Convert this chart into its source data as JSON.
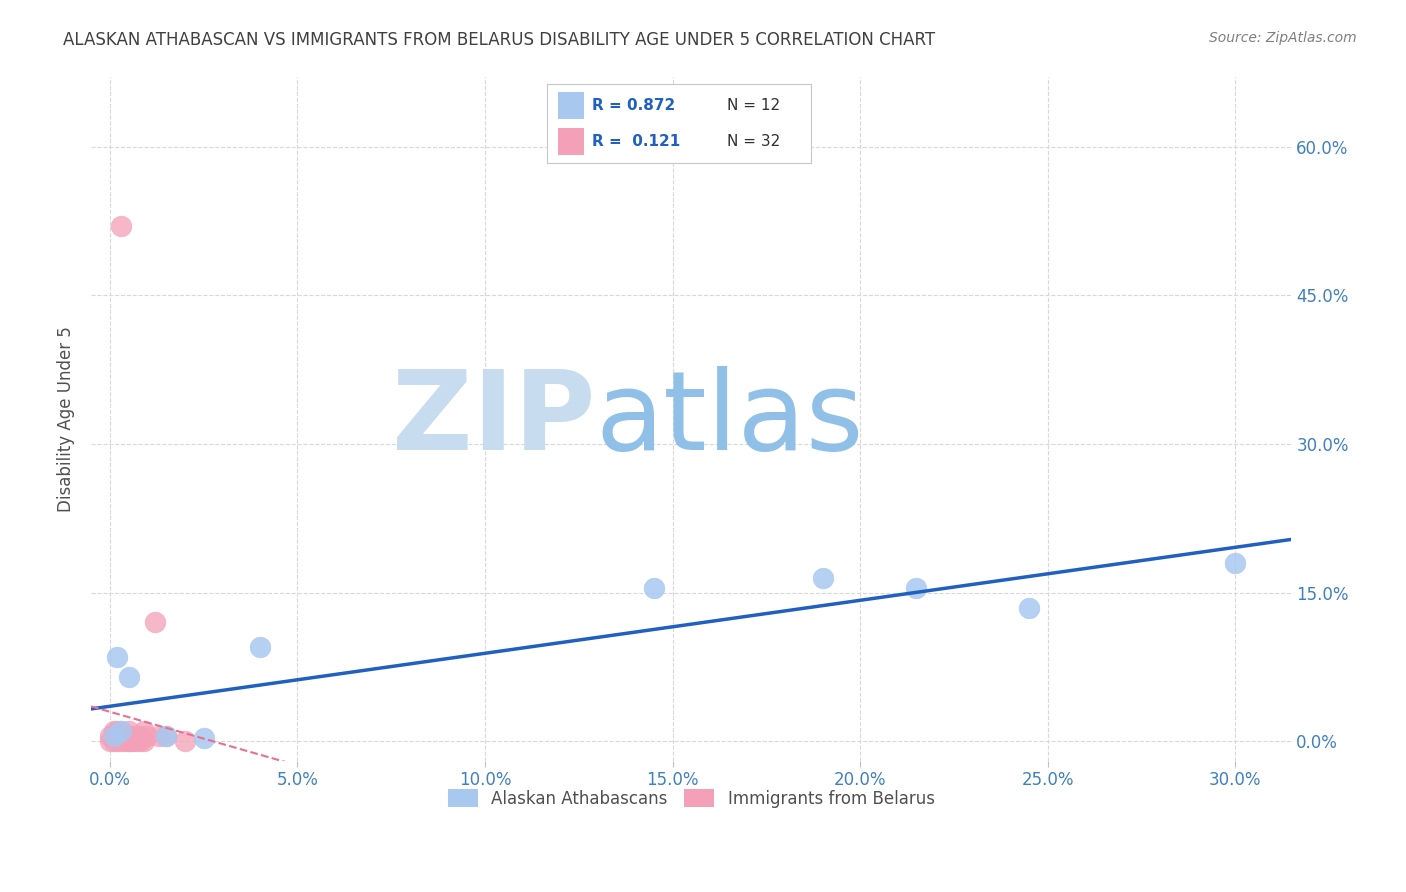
{
  "title": "ALASKAN ATHABASCAN VS IMMIGRANTS FROM BELARUS DISABILITY AGE UNDER 5 CORRELATION CHART",
  "source": "Source: ZipAtlas.com",
  "ylabel": "Disability Age Under 5",
  "x_ticks": [
    0.0,
    0.05,
    0.1,
    0.15,
    0.2,
    0.25,
    0.3
  ],
  "x_tick_labels": [
    "0.0%",
    "5.0%",
    "10.0%",
    "15.0%",
    "20.0%",
    "25.0%",
    "30.0%"
  ],
  "y_ticks": [
    0.0,
    0.15,
    0.3,
    0.45,
    0.6
  ],
  "y_tick_labels": [
    "0.0%",
    "15.0%",
    "30.0%",
    "45.0%",
    "60.0%"
  ],
  "xlim": [
    -0.005,
    0.315
  ],
  "ylim": [
    -0.02,
    0.67
  ],
  "blue_color": "#A8C8F0",
  "pink_color": "#F4A0B8",
  "blue_line_color": "#2060C0",
  "pink_line_color": "#E87090",
  "r_blue": 0.872,
  "n_blue": 12,
  "r_pink": 0.121,
  "n_pink": 32,
  "blue_scatter_x": [
    0.001,
    0.002,
    0.003,
    0.005,
    0.015,
    0.025,
    0.04,
    0.145,
    0.19,
    0.215,
    0.245,
    0.3
  ],
  "blue_scatter_y": [
    0.005,
    0.085,
    0.01,
    0.065,
    0.005,
    0.003,
    0.095,
    0.155,
    0.165,
    0.155,
    0.135,
    0.18
  ],
  "pink_scatter_x": [
    0.0,
    0.0,
    0.001,
    0.001,
    0.001,
    0.002,
    0.002,
    0.002,
    0.003,
    0.003,
    0.003,
    0.003,
    0.004,
    0.004,
    0.005,
    0.005,
    0.005,
    0.005,
    0.006,
    0.006,
    0.007,
    0.007,
    0.008,
    0.008,
    0.009,
    0.009,
    0.01,
    0.012,
    0.013,
    0.015,
    0.02,
    0.003
  ],
  "pink_scatter_y": [
    0.0,
    0.005,
    0.0,
    0.005,
    0.01,
    0.0,
    0.005,
    0.01,
    0.0,
    0.005,
    0.01,
    0.005,
    0.0,
    0.005,
    0.0,
    0.005,
    0.01,
    0.0,
    0.0,
    0.005,
    0.0,
    0.005,
    0.0,
    0.005,
    0.01,
    0.0,
    0.005,
    0.12,
    0.005,
    0.005,
    0.0,
    0.52
  ],
  "watermark_zip": "ZIP",
  "watermark_atlas": "atlas",
  "watermark_color_zip": "#C8DCF0",
  "watermark_color_atlas": "#90C0E8",
  "background_color": "#FFFFFF",
  "grid_color": "#D8D8D8",
  "title_color": "#404040",
  "axis_label_color": "#505050",
  "tick_color": "#4080C0",
  "legend_r_color": "#2060C0",
  "legend_n_color": "#303030"
}
